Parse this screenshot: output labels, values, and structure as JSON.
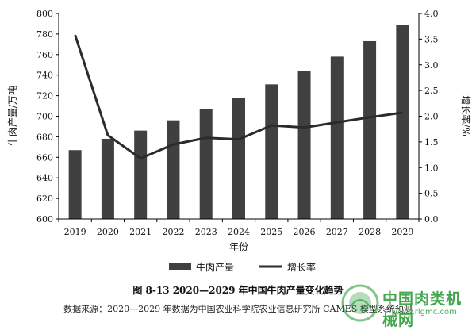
{
  "chart_data": {
    "type": "bar+line",
    "categories": [
      "2019",
      "2020",
      "2021",
      "2022",
      "2023",
      "2024",
      "2025",
      "2026",
      "2027",
      "2028",
      "2029"
    ],
    "series": [
      {
        "name": "牛肉产量",
        "type": "bar",
        "axis": "left",
        "color": "#404040",
        "values": [
          667,
          678,
          686,
          696,
          707,
          718,
          731,
          744,
          758,
          773,
          789
        ]
      },
      {
        "name": "增长率",
        "type": "line",
        "axis": "right",
        "color": "#2b2b2b",
        "values": [
          3.58,
          1.63,
          1.18,
          1.45,
          1.58,
          1.55,
          1.82,
          1.78,
          1.88,
          1.98,
          2.07
        ]
      }
    ],
    "xlabel": "年份",
    "ylabel_left": "牛肉产量/万吨",
    "ylabel_right": "增长率/%",
    "ylim_left": [
      600,
      800
    ],
    "yticks_left": [
      "600",
      "620",
      "640",
      "660",
      "680",
      "700",
      "720",
      "740",
      "760",
      "780",
      "800"
    ],
    "ylim_right": [
      0,
      4
    ],
    "yticks_right": [
      "0.0",
      "0.5",
      "1.0",
      "1.5",
      "2.0",
      "2.5",
      "3.0",
      "3.5",
      "4.0"
    ],
    "grid": false,
    "legend_position": "bottom"
  },
  "caption": "图 8-13    2020—2029 年中国牛肉产量变化趋势",
  "source": "数据来源：2020—2029 年数据为中国农业科学院农业信息研究所 CAMES 模型系统预测",
  "watermark": {
    "text": "中国肉类机械网",
    "url": "www.rlgmc.com"
  }
}
